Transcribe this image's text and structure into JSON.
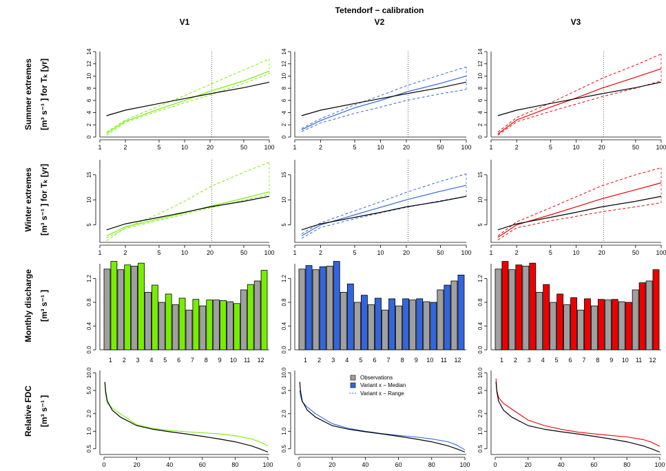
{
  "figure": {
    "title": "Tetendorf − calibration",
    "column_titles": [
      "V1",
      "V2",
      "V3"
    ],
    "row_labels": [
      [
        "Summer extremes",
        "[m³ s⁻¹ ]  for Tₖ [yr]"
      ],
      [
        "Winter extremes",
        "[m³ s⁻¹ ] for Tₖ [yr]"
      ],
      [
        "Monthly discharge",
        "[m³ s⁻¹ ]"
      ],
      [
        "Relative FDC",
        "[m³ s⁻¹ ]"
      ]
    ],
    "legend": {
      "observations": "Observations",
      "median": "Variant x − Median",
      "range": "Variant x − Range"
    },
    "colors": {
      "observations_line": "#000000",
      "observations_bar": "#a0a0a0",
      "V1": "#77ee00",
      "V2": "#3366dd",
      "V3": "#ee0000",
      "reference_line": "#333333"
    }
  },
  "chart_data": [
    {
      "type": "line",
      "title": "Summer extremes",
      "xscale": "log",
      "x_ticks": [
        1,
        2,
        5,
        10,
        20,
        50,
        100
      ],
      "xlim": [
        1,
        100
      ],
      "y_ticks": [
        0,
        2,
        4,
        6,
        8,
        10,
        12,
        14
      ],
      "ylim": [
        0,
        14
      ],
      "reference_x": 21,
      "observations": {
        "x": [
          1.2,
          2,
          5,
          10,
          20,
          50,
          100
        ],
        "y": [
          3.5,
          4.4,
          5.5,
          6.3,
          7.1,
          8.1,
          9.0
        ]
      },
      "variants": {
        "V1": {
          "median": {
            "x": [
              1.2,
              2,
              5,
              10,
              20,
              50,
              100
            ],
            "y": [
              0.6,
              2.6,
              4.6,
              6.0,
              7.5,
              9.2,
              10.8
            ]
          },
          "lower": {
            "x": [
              1.2,
              2,
              5,
              10,
              20,
              50,
              100
            ],
            "y": [
              0.3,
              2.4,
              4.3,
              5.6,
              6.9,
              8.8,
              10.4
            ]
          },
          "upper": {
            "x": [
              1.2,
              2,
              5,
              10,
              20,
              50,
              100
            ],
            "y": [
              0.8,
              2.8,
              5.1,
              6.8,
              8.6,
              11.0,
              12.8
            ]
          }
        },
        "V2": {
          "median": {
            "x": [
              1.2,
              2,
              5,
              10,
              20,
              50,
              100
            ],
            "y": [
              1.2,
              2.7,
              4.8,
              6.0,
              7.4,
              8.8,
              10.0
            ]
          },
          "lower": {
            "x": [
              1.2,
              2,
              5,
              10,
              20,
              50,
              100
            ],
            "y": [
              0.9,
              2.3,
              3.9,
              4.9,
              6.0,
              7.1,
              7.8
            ]
          },
          "upper": {
            "x": [
              1.2,
              2,
              5,
              10,
              20,
              50,
              100
            ],
            "y": [
              1.4,
              3.0,
              5.3,
              6.8,
              8.4,
              10.2,
              11.5
            ]
          }
        },
        "V3": {
          "median": {
            "x": [
              1.2,
              2,
              5,
              10,
              20,
              50,
              100
            ],
            "y": [
              0.5,
              2.8,
              4.9,
              6.4,
              8.0,
              9.8,
              11.2
            ]
          },
          "lower": {
            "x": [
              1.2,
              2,
              5,
              10,
              20,
              50,
              100
            ],
            "y": [
              0.3,
              2.5,
              4.2,
              5.4,
              6.6,
              8.0,
              9.2
            ]
          },
          "upper": {
            "x": [
              1.2,
              2,
              5,
              10,
              20,
              50,
              100
            ],
            "y": [
              0.8,
              3.2,
              5.6,
              7.6,
              9.6,
              11.8,
              13.6
            ]
          }
        }
      }
    },
    {
      "type": "line",
      "title": "Winter extremes",
      "xscale": "log",
      "x_ticks": [
        1,
        2,
        5,
        10,
        20,
        50,
        100
      ],
      "xlim": [
        1,
        100
      ],
      "y_ticks": [
        5,
        10,
        15
      ],
      "ylim": [
        1.5,
        18
      ],
      "reference_x": 21,
      "observations": {
        "x": [
          1.2,
          2,
          5,
          10,
          20,
          50,
          100
        ],
        "y": [
          4.0,
          5.2,
          6.5,
          7.5,
          8.6,
          9.7,
          10.7
        ]
      },
      "variants": {
        "V1": {
          "median": {
            "x": [
              1.2,
              2,
              5,
              10,
              20,
              50,
              100
            ],
            "y": [
              2.8,
              4.6,
              6.2,
              7.4,
              8.7,
              10.3,
              11.6
            ]
          },
          "lower": {
            "x": [
              1.2,
              2,
              5,
              10,
              20,
              50,
              100
            ],
            "y": [
              2.4,
              4.3,
              5.9,
              7.1,
              8.4,
              9.9,
              11.1
            ]
          },
          "upper": {
            "x": [
              1.2,
              2,
              5,
              10,
              20,
              50,
              100
            ],
            "y": [
              1.8,
              4.4,
              7.2,
              9.7,
              12.6,
              15.5,
              17.5
            ]
          }
        },
        "V2": {
          "median": {
            "x": [
              1.2,
              2,
              5,
              10,
              20,
              50,
              100
            ],
            "y": [
              2.8,
              5.0,
              7.0,
              8.5,
              10.0,
              11.7,
              12.9
            ]
          },
          "lower": {
            "x": [
              1.2,
              2,
              5,
              10,
              20,
              50,
              100
            ],
            "y": [
              2.3,
              4.5,
              6.2,
              7.4,
              8.5,
              9.8,
              10.7
            ]
          },
          "upper": {
            "x": [
              1.2,
              2,
              5,
              10,
              20,
              50,
              100
            ],
            "y": [
              3.2,
              5.4,
              7.8,
              9.6,
              11.5,
              13.7,
              15.2
            ]
          }
        },
        "V3": {
          "median": {
            "x": [
              1.2,
              2,
              5,
              10,
              20,
              50,
              100
            ],
            "y": [
              2.5,
              5.0,
              7.0,
              8.6,
              10.2,
              12.0,
              13.4
            ]
          },
          "lower": {
            "x": [
              1.2,
              2,
              5,
              10,
              20,
              50,
              100
            ],
            "y": [
              2.0,
              4.4,
              5.8,
              6.7,
              7.6,
              8.6,
              9.4
            ]
          },
          "upper": {
            "x": [
              1.2,
              2,
              5,
              10,
              20,
              50,
              100
            ],
            "y": [
              2.8,
              5.6,
              8.4,
              10.6,
              12.8,
              15.0,
              16.4
            ]
          }
        }
      }
    },
    {
      "type": "bar",
      "title": "Monthly discharge",
      "categories": [
        "1",
        "2",
        "3",
        "4",
        "5",
        "6",
        "7",
        "8",
        "9",
        "10",
        "11",
        "12"
      ],
      "y_ticks": [
        0.0,
        0.4,
        0.8,
        1.2
      ],
      "ylim": [
        0,
        1.45
      ],
      "observations": [
        1.36,
        1.35,
        1.41,
        0.97,
        0.8,
        0.76,
        0.67,
        0.74,
        0.84,
        0.81,
        1.01,
        1.16
      ],
      "variants": {
        "V1": [
          1.49,
          1.43,
          1.46,
          1.09,
          0.94,
          0.87,
          0.85,
          0.84,
          0.83,
          0.78,
          1.1,
          1.34
        ],
        "V2": [
          1.42,
          1.4,
          1.49,
          1.11,
          0.92,
          0.87,
          0.86,
          0.86,
          0.86,
          0.8,
          1.09,
          1.26
        ],
        "V3": [
          1.49,
          1.43,
          1.46,
          1.1,
          0.94,
          0.88,
          0.86,
          0.85,
          0.85,
          0.8,
          1.13,
          1.35
        ]
      }
    },
    {
      "type": "line",
      "title": "Relative FDC",
      "yscale": "log",
      "x_ticks": [
        0,
        20,
        40,
        60,
        80,
        100
      ],
      "xlim": [
        0,
        100
      ],
      "y_ticks": [
        0.5,
        1.0,
        2.0,
        5.0,
        10.0
      ],
      "ylim": [
        0.4,
        11
      ],
      "observations": {
        "x": [
          0.5,
          1,
          2,
          5,
          10,
          20,
          30,
          40,
          50,
          60,
          70,
          80,
          90,
          95,
          100
        ],
        "y": [
          7.0,
          4.8,
          3.3,
          2.3,
          1.75,
          1.25,
          1.08,
          0.98,
          0.9,
          0.82,
          0.74,
          0.66,
          0.56,
          0.5,
          0.44
        ]
      },
      "variants": {
        "V1": {
          "x": [
            0.5,
            1,
            2,
            5,
            10,
            20,
            30,
            40,
            50,
            60,
            70,
            80,
            90,
            95,
            100
          ],
          "y": [
            6.5,
            4.2,
            3.0,
            2.5,
            2.0,
            1.3,
            1.12,
            1.03,
            0.98,
            0.94,
            0.9,
            0.84,
            0.74,
            0.66,
            0.56
          ]
        },
        "V2": {
          "x": [
            0.5,
            1,
            2,
            5,
            10,
            20,
            30,
            40,
            50,
            60,
            70,
            80,
            90,
            95,
            100
          ],
          "y": [
            5.0,
            4.0,
            3.2,
            2.6,
            2.0,
            1.35,
            1.12,
            1.0,
            0.91,
            0.85,
            0.8,
            0.74,
            0.66,
            0.58,
            0.48
          ]
        },
        "V3": {
          "x": [
            0.5,
            1,
            2,
            5,
            10,
            20,
            30,
            40,
            50,
            60,
            70,
            80,
            90,
            95,
            100
          ],
          "y": [
            8.0,
            5.0,
            3.8,
            3.0,
            2.4,
            1.55,
            1.25,
            1.08,
            0.97,
            0.9,
            0.85,
            0.8,
            0.72,
            0.65,
            0.55
          ]
        }
      }
    }
  ]
}
